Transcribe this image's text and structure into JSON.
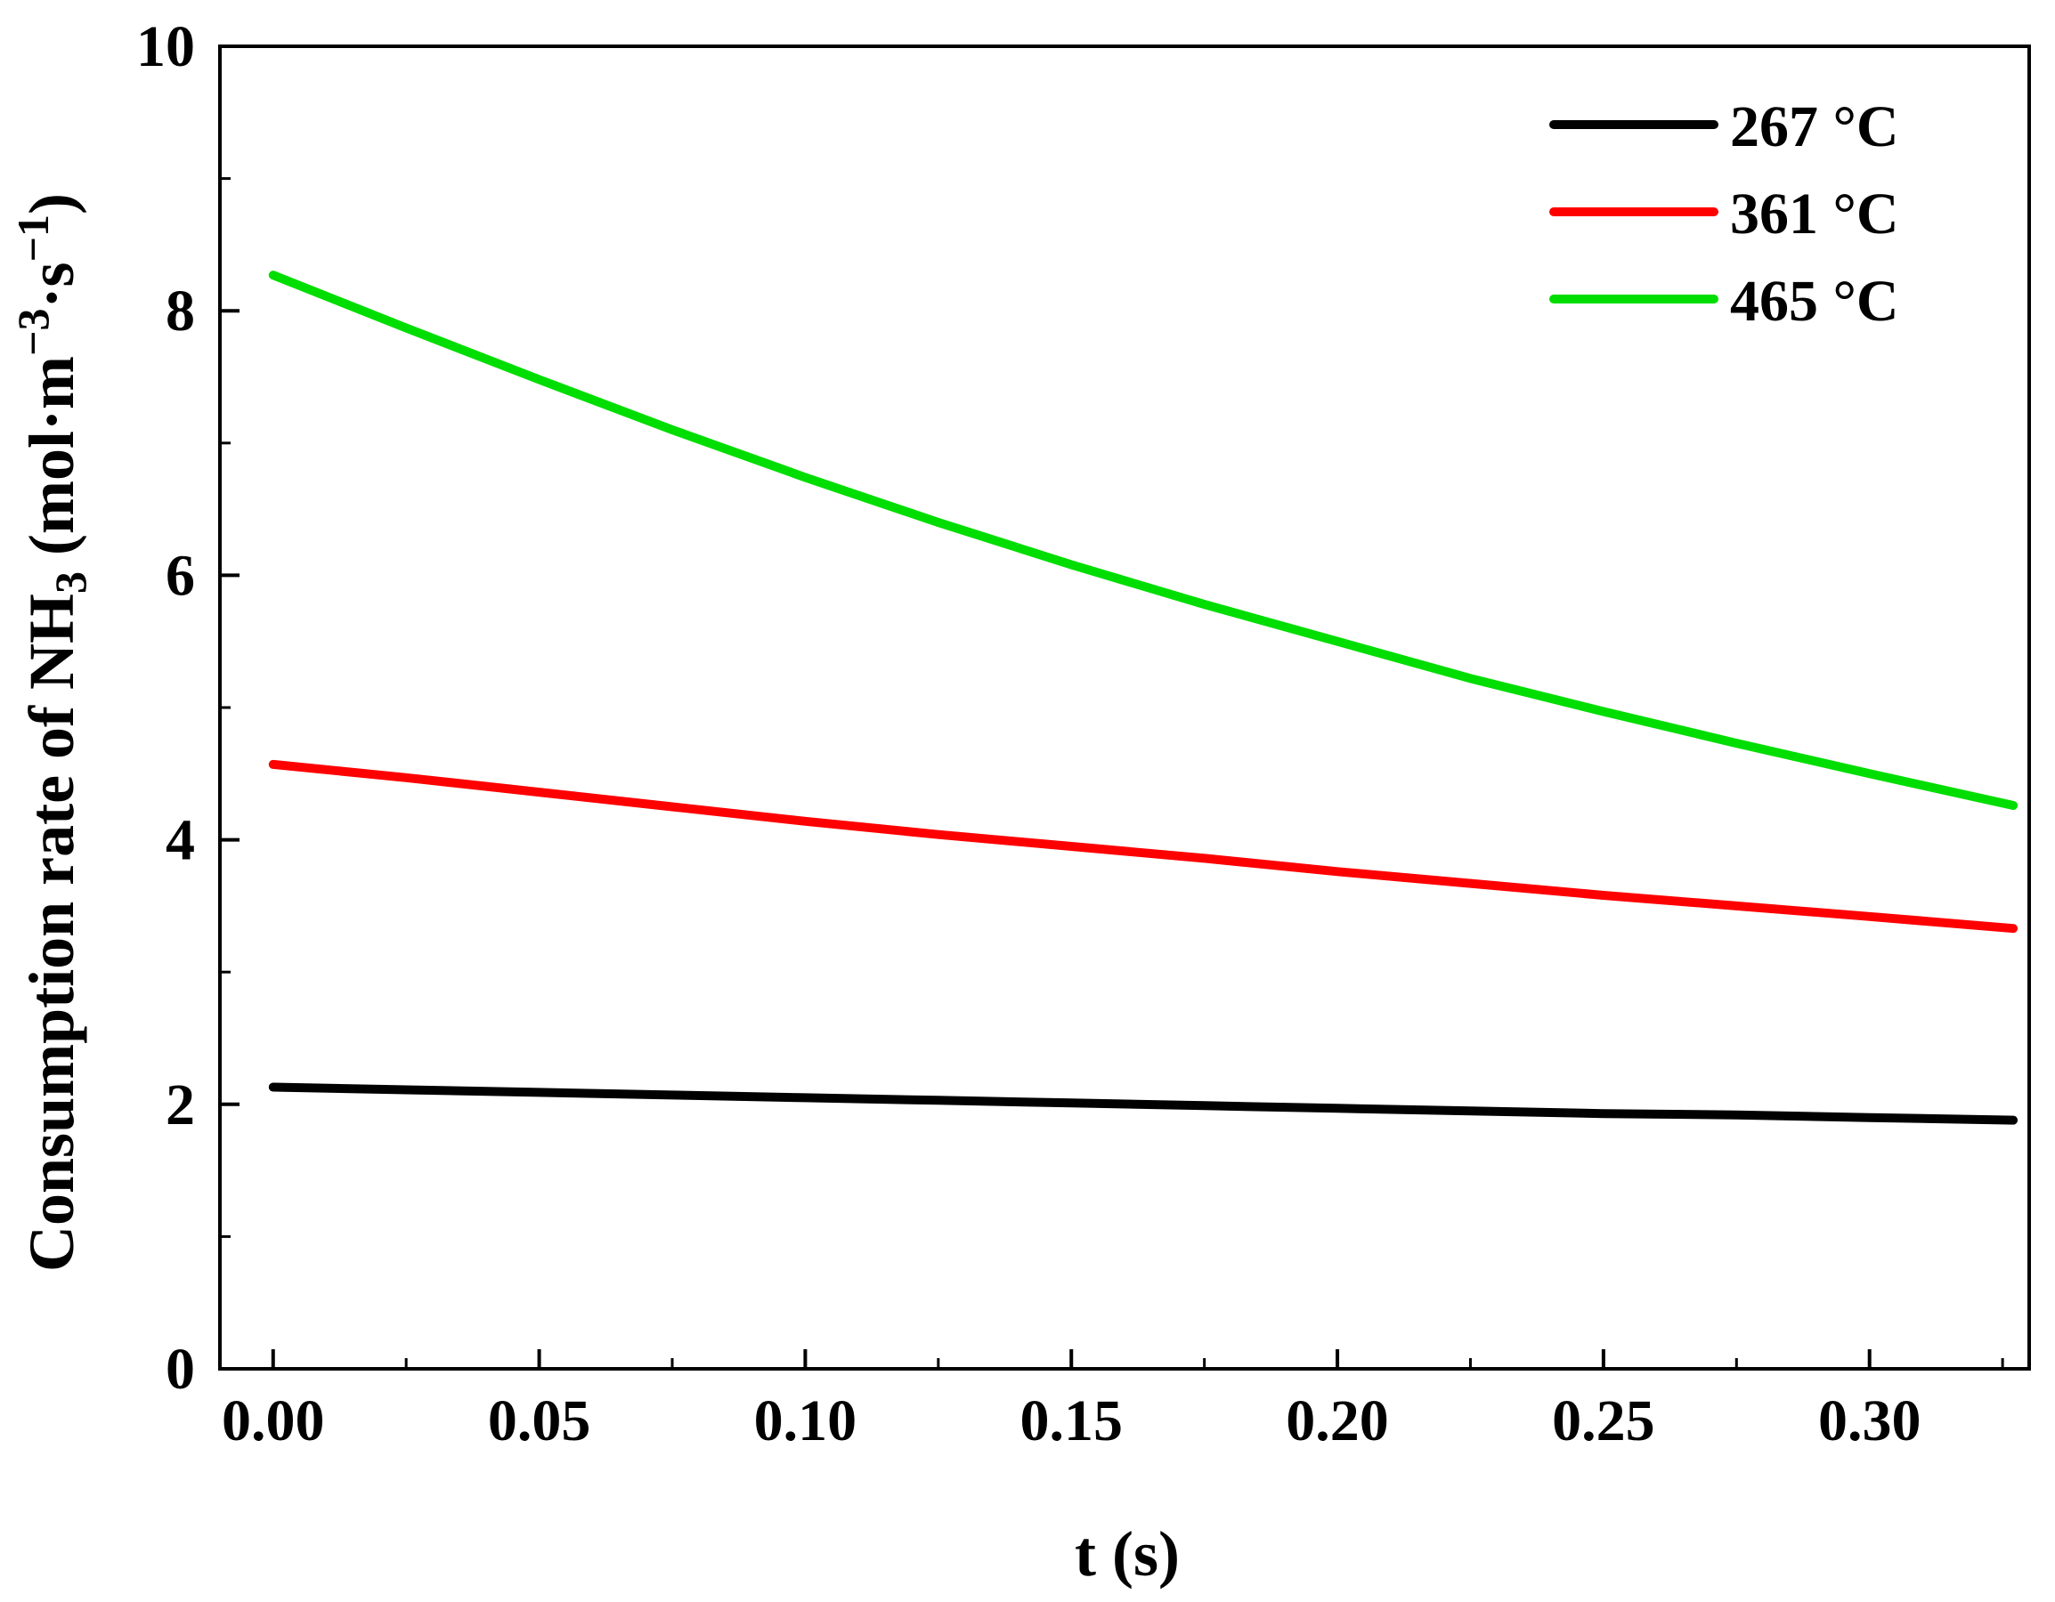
{
  "chart_data": {
    "type": "line",
    "title": "",
    "xlabel": "t (s)",
    "ylabel": {
      "prefix": "Consumption rate of NH",
      "sub": "3",
      "middle": " (mol·m",
      "sup1": "−3",
      "middle2": "·s",
      "sup2": "−1",
      "suffix": ")"
    },
    "xlim": [
      -0.01,
      0.33
    ],
    "ylim": [
      0,
      10
    ],
    "x_ticks": [
      0.0,
      0.05,
      0.1,
      0.15,
      0.2,
      0.25,
      0.3
    ],
    "x_tick_labels": [
      "0.00",
      "0.05",
      "0.10",
      "0.15",
      "0.20",
      "0.25",
      "0.30"
    ],
    "y_ticks": [
      0,
      2,
      4,
      6,
      8,
      10
    ],
    "y_tick_labels": [
      "0",
      "2",
      "4",
      "6",
      "8",
      "10"
    ],
    "grid": false,
    "legend_position": "top-right",
    "series": [
      {
        "name": "267 °C",
        "color": "#000000",
        "x": [
          0.0,
          0.025,
          0.05,
          0.075,
          0.1,
          0.125,
          0.15,
          0.175,
          0.2,
          0.225,
          0.25,
          0.275,
          0.3,
          0.327
        ],
        "y": [
          2.13,
          2.11,
          2.09,
          2.07,
          2.05,
          2.03,
          2.01,
          1.99,
          1.97,
          1.95,
          1.93,
          1.92,
          1.9,
          1.88
        ]
      },
      {
        "name": "361 °C",
        "color": "#ff0000",
        "x": [
          0.0,
          0.025,
          0.05,
          0.075,
          0.1,
          0.125,
          0.15,
          0.175,
          0.2,
          0.225,
          0.25,
          0.275,
          0.3,
          0.327
        ],
        "y": [
          4.57,
          4.47,
          4.36,
          4.25,
          4.14,
          4.04,
          3.95,
          3.86,
          3.76,
          3.67,
          3.58,
          3.5,
          3.42,
          3.33
        ]
      },
      {
        "name": "465 °C",
        "color": "#00dd00",
        "x": [
          0.0,
          0.025,
          0.05,
          0.075,
          0.1,
          0.125,
          0.15,
          0.175,
          0.2,
          0.225,
          0.25,
          0.275,
          0.3,
          0.327
        ],
        "y": [
          8.27,
          7.87,
          7.48,
          7.1,
          6.74,
          6.4,
          6.08,
          5.78,
          5.5,
          5.22,
          4.97,
          4.73,
          4.5,
          4.26
        ]
      }
    ]
  }
}
